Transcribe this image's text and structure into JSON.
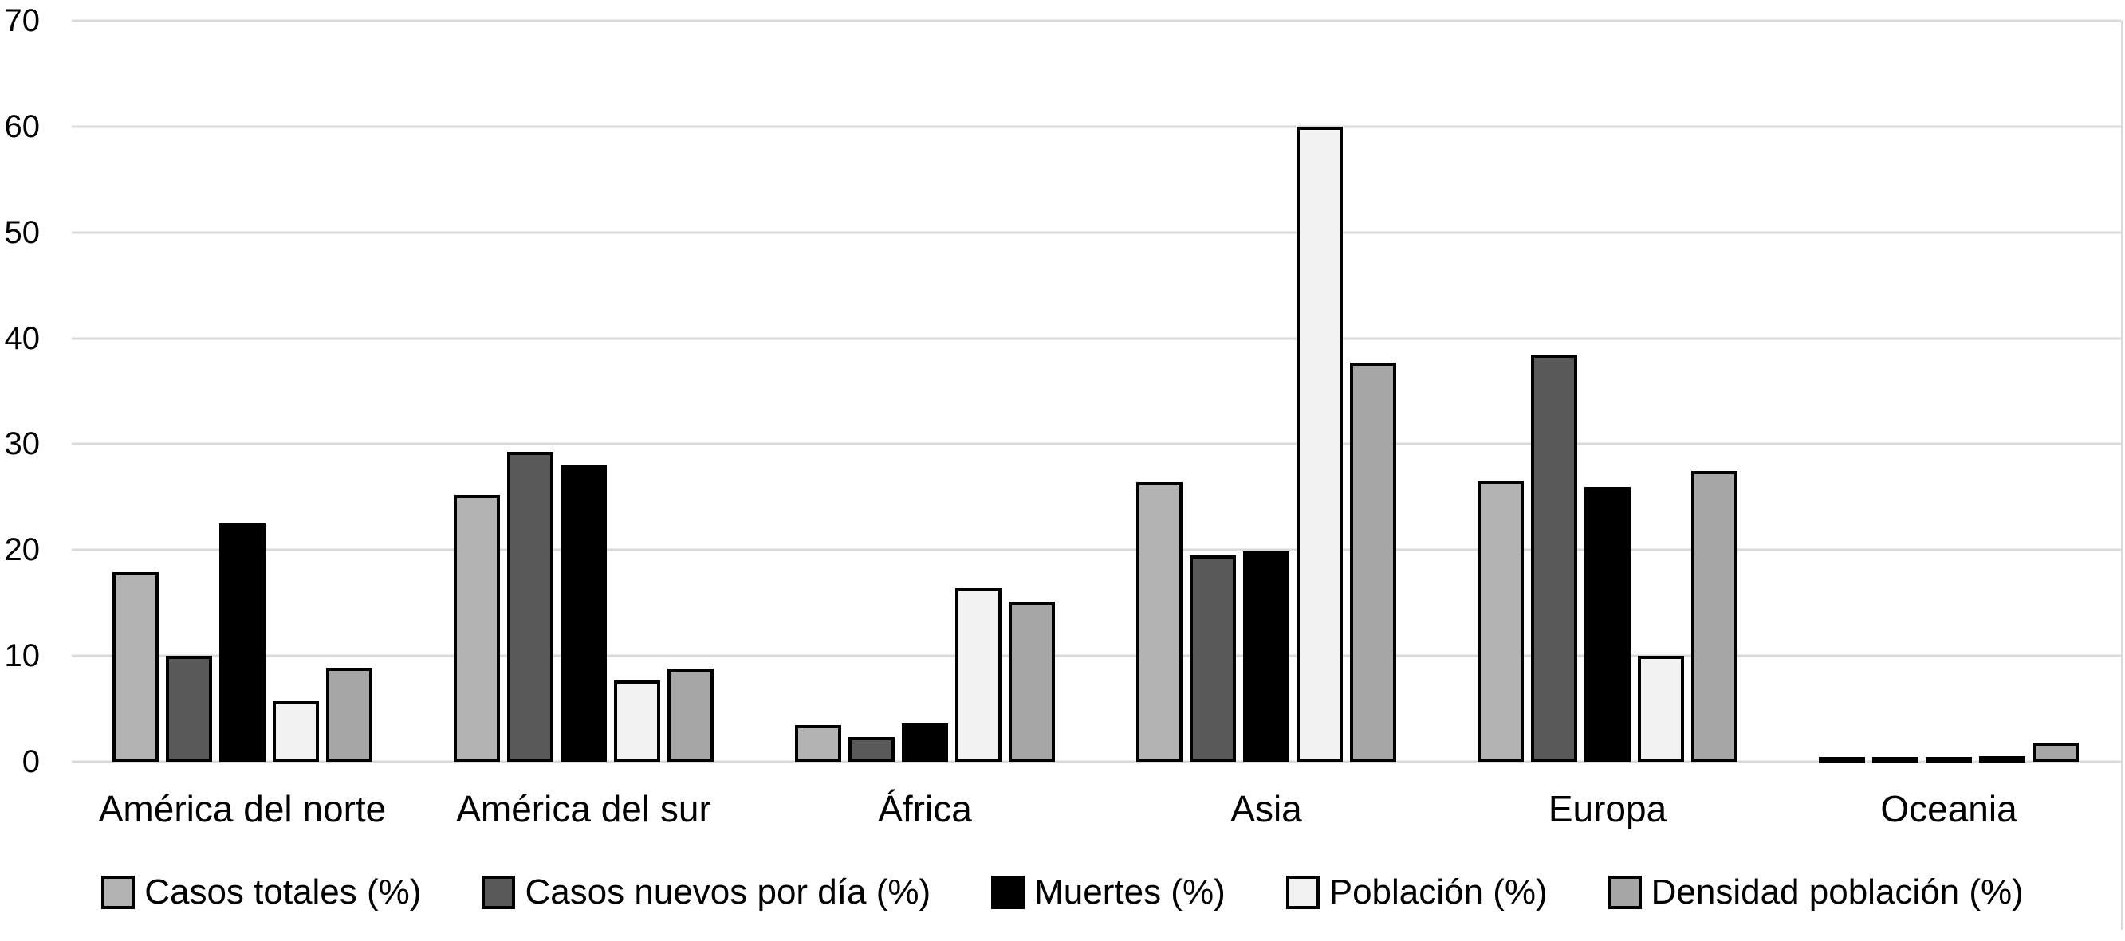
{
  "chart_data": {
    "type": "bar",
    "title": "",
    "xlabel": "",
    "ylabel": "",
    "ylim": [
      0,
      70
    ],
    "y_tick_step": 10,
    "y_tick_labels": [
      "0",
      "10",
      "20",
      "30",
      "40",
      "50",
      "60",
      "70"
    ],
    "grid": true,
    "legend_position": "bottom",
    "categories": [
      "América del norte",
      "América del sur",
      "África",
      "Asia",
      "Europa",
      "Oceania"
    ],
    "series": [
      {
        "name": "Casos totales (%)",
        "color": "#b3b3b3",
        "values": [
          17.9,
          25.2,
          3.5,
          26.4,
          26.5,
          0.1
        ]
      },
      {
        "name": "Casos nuevos por día (%)",
        "color": "#595959",
        "values": [
          10.0,
          29.3,
          2.3,
          19.5,
          38.5,
          0.1
        ]
      },
      {
        "name": "Muertes (%)",
        "color": "#000000",
        "values": [
          22.5,
          28.0,
          3.6,
          19.9,
          26.0,
          0.1
        ]
      },
      {
        "name": "Población (%)",
        "color": "#f2f2f2",
        "values": [
          5.7,
          7.7,
          16.4,
          60.0,
          10.0,
          0.5
        ]
      },
      {
        "name": "Densidad población (%)",
        "color": "#a6a6a6",
        "values": [
          8.9,
          8.8,
          15.1,
          37.7,
          27.5,
          1.8
        ]
      }
    ],
    "colors": {
      "gridline": "#d9d9d9",
      "bar_outline": "#000000",
      "text": "#000000",
      "background": "#ffffff"
    }
  }
}
